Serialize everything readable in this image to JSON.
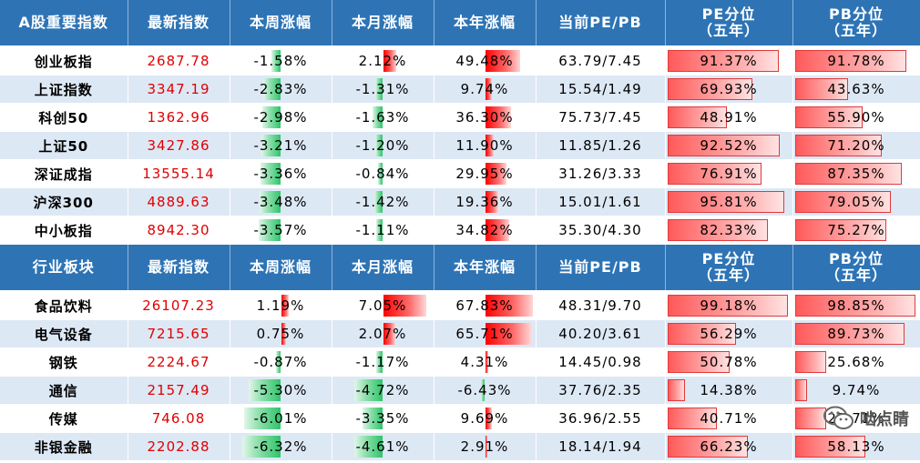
{
  "sections": [
    {
      "headers": [
        "A股重要指数",
        "最新指数",
        "本周涨幅",
        "本月涨幅",
        "本年涨幅",
        "当前PE/PB",
        "PE分位\n（五年）",
        "PB分位\n（五年）"
      ],
      "rows": [
        {
          "name": "创业板指",
          "price": "2687.78",
          "week": "-1.58%",
          "month": "2.12%",
          "year": "49.48%",
          "pepb": "63.79/7.45",
          "pe_pct": "91.37%",
          "pb_pct": "91.78%"
        },
        {
          "name": "上证指数",
          "price": "3347.19",
          "week": "-2.83%",
          "month": "-1.31%",
          "year": "9.74%",
          "pepb": "15.54/1.49",
          "pe_pct": "69.93%",
          "pb_pct": "43.63%"
        },
        {
          "name": "科创50",
          "price": "1362.96",
          "week": "-2.98%",
          "month": "-1.63%",
          "year": "36.30%",
          "pepb": "75.73/7.45",
          "pe_pct": "48.91%",
          "pb_pct": "55.90%"
        },
        {
          "name": "上证50",
          "price": "3427.86",
          "week": "-3.21%",
          "month": "-1.20%",
          "year": "11.90%",
          "pepb": "11.85/1.26",
          "pe_pct": "92.52%",
          "pb_pct": "71.20%"
        },
        {
          "name": "深证成指",
          "price": "13555.14",
          "week": "-3.36%",
          "month": "-0.84%",
          "year": "29.95%",
          "pepb": "31.26/3.33",
          "pe_pct": "76.91%",
          "pb_pct": "87.35%"
        },
        {
          "name": "沪深300",
          "price": "4889.63",
          "week": "-3.48%",
          "month": "-1.42%",
          "year": "19.36%",
          "pepb": "15.01/1.61",
          "pe_pct": "95.81%",
          "pb_pct": "79.05%"
        },
        {
          "name": "中小板指",
          "price": "8942.30",
          "week": "-3.57%",
          "month": "-1.11%",
          "year": "34.82%",
          "pepb": "35.30/4.30",
          "pe_pct": "82.33%",
          "pb_pct": "75.27%"
        }
      ]
    },
    {
      "headers": [
        "行业板块",
        "最新指数",
        "本周涨幅",
        "本月涨幅",
        "本年涨幅",
        "当前PE/PB",
        "PE分位\n（五年）",
        "PB分位\n（五年）"
      ],
      "rows": [
        {
          "name": "食品饮料",
          "price": "26107.23",
          "week": "1.19%",
          "month": "7.05%",
          "year": "67.83%",
          "pepb": "48.31/9.70",
          "pe_pct": "99.18%",
          "pb_pct": "98.85%"
        },
        {
          "name": "电气设备",
          "price": "7215.65",
          "week": "0.75%",
          "month": "2.07%",
          "year": "65.71%",
          "pepb": "40.20/3.61",
          "pe_pct": "56.29%",
          "pb_pct": "89.73%"
        },
        {
          "name": "钢铁",
          "price": "2224.67",
          "week": "-0.87%",
          "month": "-1.17%",
          "year": "4.31%",
          "pepb": "14.45/0.98",
          "pe_pct": "50.78%",
          "pb_pct": "25.68%"
        },
        {
          "name": "通信",
          "price": "2157.49",
          "week": "-5.30%",
          "month": "-4.72%",
          "year": "-6.43%",
          "pepb": "37.76/2.35",
          "pe_pct": "14.38%",
          "pb_pct": "9.74%"
        },
        {
          "name": "传媒",
          "price": "746.08",
          "week": "-6.01%",
          "month": "-3.35%",
          "year": "9.69%",
          "pepb": "36.96/2.55",
          "pe_pct": "40.71%",
          "pb_pct": "25.71%"
        },
        {
          "name": "非银金融",
          "price": "2202.88",
          "week": "-6.32%",
          "month": "-4.61%",
          "year": "2.91%",
          "pepb": "18.14/1.94",
          "pe_pct": "66.23%",
          "pb_pct": "58.13%"
        }
      ]
    }
  ],
  "colors": {
    "header_bg": "#2e74b5",
    "price": "#e00000",
    "positive": "#ff0000",
    "negative": "#2ec46a",
    "stripe": "#dde8f5"
  },
  "watermark": {
    "icon": "wechat-icon",
    "text": "啮点睛"
  }
}
